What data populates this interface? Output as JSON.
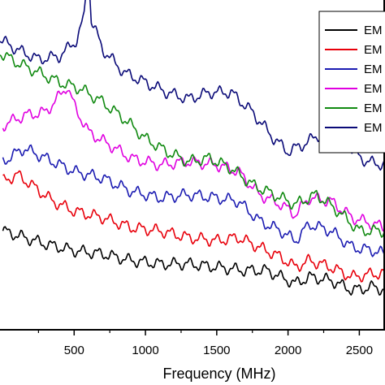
{
  "chart_data": {
    "type": "line",
    "title": "",
    "xlabel": "Frequency (MHz)",
    "ylabel": "",
    "xlim": [
      -20,
      2680
    ],
    "ylim": [
      0,
      100
    ],
    "x_ticks": [
      500,
      1000,
      1500,
      2000,
      2500
    ],
    "x_tick_labels": [
      "500",
      "1000",
      "1500",
      "2000",
      "2500"
    ],
    "grid": false,
    "legend": "top-right",
    "series": [
      {
        "name": "EM",
        "color": "#000000",
        "points": [
          [
            0,
            30
          ],
          [
            150,
            28
          ],
          [
            300,
            26
          ],
          [
            500,
            24
          ],
          [
            700,
            23
          ],
          [
            900,
            21
          ],
          [
            1100,
            20
          ],
          [
            1300,
            20
          ],
          [
            1500,
            19
          ],
          [
            1700,
            18
          ],
          [
            1850,
            18
          ],
          [
            1950,
            16
          ],
          [
            2050,
            14
          ],
          [
            2150,
            16
          ],
          [
            2300,
            15
          ],
          [
            2450,
            12
          ],
          [
            2600,
            13
          ],
          [
            2680,
            12
          ]
        ]
      },
      {
        "name": "EM",
        "color": "#e8000b",
        "points": [
          [
            0,
            45
          ],
          [
            100,
            47
          ],
          [
            200,
            44
          ],
          [
            350,
            39
          ],
          [
            500,
            36
          ],
          [
            700,
            34
          ],
          [
            900,
            31
          ],
          [
            1100,
            30
          ],
          [
            1300,
            28
          ],
          [
            1500,
            27
          ],
          [
            1650,
            28
          ],
          [
            1800,
            25
          ],
          [
            1950,
            22
          ],
          [
            2050,
            19
          ],
          [
            2150,
            21
          ],
          [
            2300,
            19
          ],
          [
            2450,
            16
          ],
          [
            2600,
            17
          ],
          [
            2680,
            17
          ]
        ]
      },
      {
        "name": "EM",
        "color": "#1c1cb2",
        "points": [
          [
            0,
            51
          ],
          [
            150,
            55
          ],
          [
            300,
            52
          ],
          [
            500,
            48
          ],
          [
            700,
            46
          ],
          [
            900,
            42
          ],
          [
            1100,
            40
          ],
          [
            1300,
            41
          ],
          [
            1500,
            40
          ],
          [
            1650,
            39
          ],
          [
            1800,
            33
          ],
          [
            1950,
            30
          ],
          [
            2050,
            27
          ],
          [
            2150,
            32
          ],
          [
            2300,
            30
          ],
          [
            2450,
            25
          ],
          [
            2600,
            24
          ],
          [
            2680,
            23
          ]
        ]
      },
      {
        "name": "EM",
        "color": "#e000e0",
        "points": [
          [
            0,
            62
          ],
          [
            150,
            65
          ],
          [
            300,
            66
          ],
          [
            400,
            71
          ],
          [
            450,
            74
          ],
          [
            500,
            68
          ],
          [
            600,
            60
          ],
          [
            750,
            56
          ],
          [
            900,
            52
          ],
          [
            1100,
            50
          ],
          [
            1300,
            51
          ],
          [
            1500,
            50
          ],
          [
            1650,
            48
          ],
          [
            1800,
            41
          ],
          [
            1950,
            38
          ],
          [
            2050,
            35
          ],
          [
            2150,
            40
          ],
          [
            2300,
            39
          ],
          [
            2450,
            34
          ],
          [
            2600,
            32
          ],
          [
            2680,
            31
          ]
        ]
      },
      {
        "name": "EM",
        "color": "#118a11",
        "points": [
          [
            -20,
            84
          ],
          [
            100,
            81
          ],
          [
            250,
            78
          ],
          [
            400,
            75
          ],
          [
            550,
            73
          ],
          [
            700,
            69
          ],
          [
            850,
            64
          ],
          [
            1000,
            58
          ],
          [
            1150,
            54
          ],
          [
            1300,
            51
          ],
          [
            1450,
            52
          ],
          [
            1600,
            49
          ],
          [
            1750,
            44
          ],
          [
            1900,
            41
          ],
          [
            2050,
            38
          ],
          [
            2200,
            41
          ],
          [
            2350,
            36
          ],
          [
            2500,
            30
          ],
          [
            2600,
            30
          ],
          [
            2680,
            30
          ]
        ]
      },
      {
        "name": "EM",
        "color": "#0a0a78",
        "points": [
          [
            -20,
            88
          ],
          [
            100,
            85
          ],
          [
            250,
            82
          ],
          [
            400,
            83
          ],
          [
            520,
            88
          ],
          [
            570,
            95
          ],
          [
            600,
            110
          ],
          [
            620,
            94
          ],
          [
            700,
            85
          ],
          [
            850,
            78
          ],
          [
            1000,
            75
          ],
          [
            1150,
            72
          ],
          [
            1300,
            70
          ],
          [
            1450,
            72
          ],
          [
            1600,
            72
          ],
          [
            1750,
            66
          ],
          [
            1900,
            58
          ],
          [
            2000,
            54
          ],
          [
            2100,
            56
          ],
          [
            2250,
            60
          ],
          [
            2400,
            56
          ],
          [
            2550,
            51
          ],
          [
            2680,
            50
          ]
        ]
      }
    ]
  }
}
